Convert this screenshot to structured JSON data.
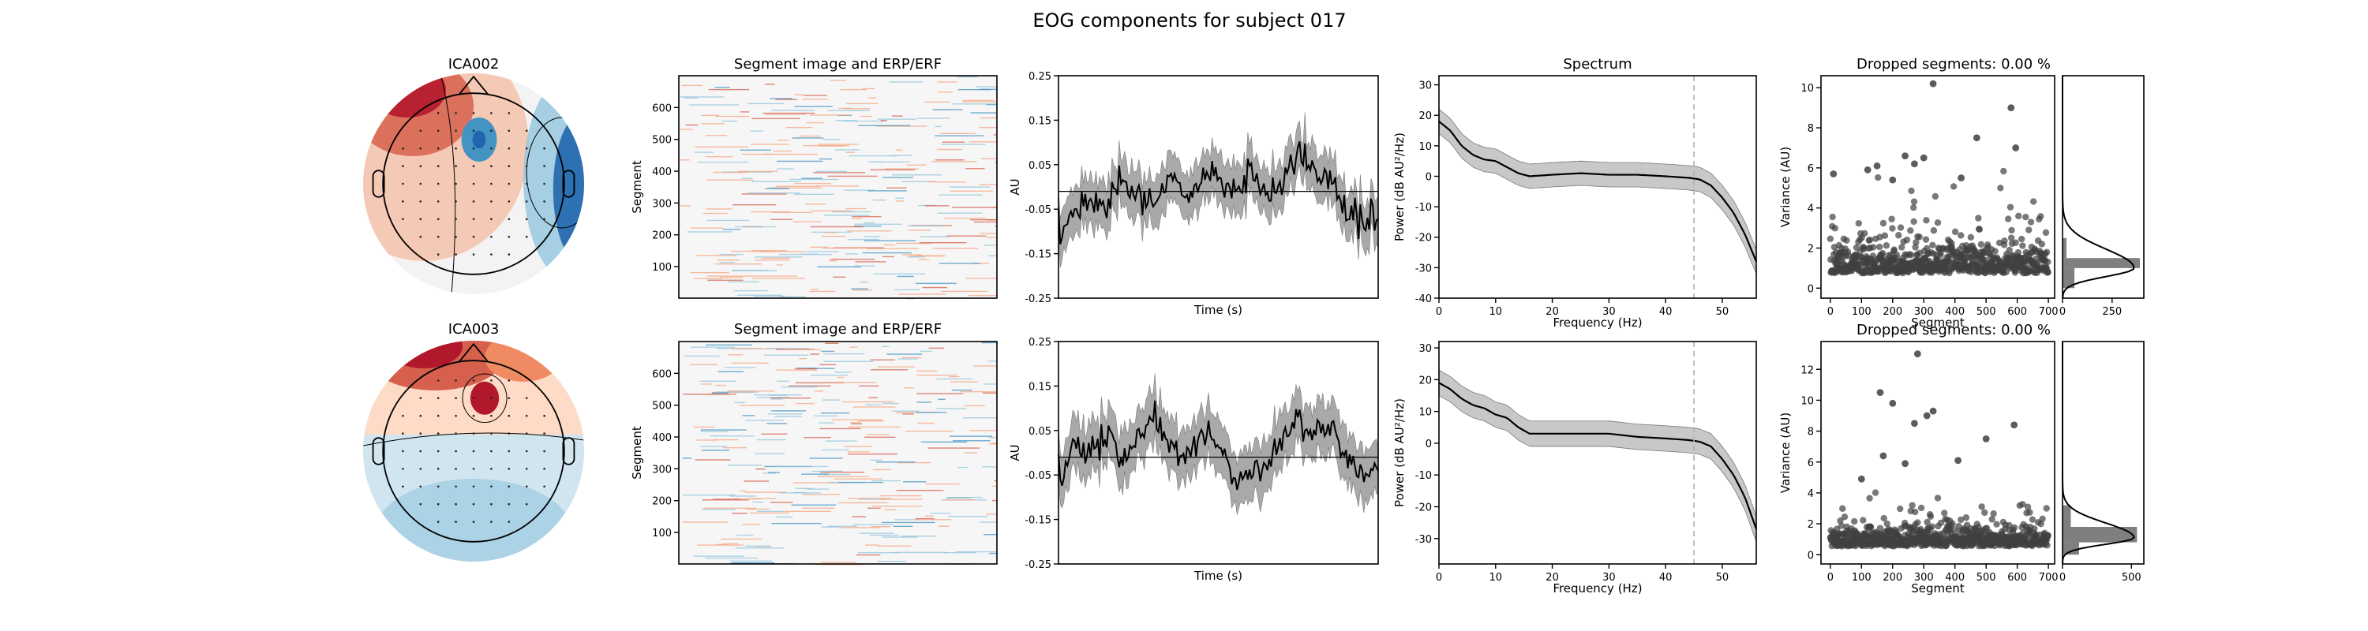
{
  "figure": {
    "suptitle": "EOG components for subject 017",
    "segment_image_title": "Segment image and ERP/ERF",
    "spectrum_title": "Spectrum",
    "dropped_title": "Dropped segments: 0.00 %"
  },
  "colors": {
    "topo_red": "#b2182b",
    "topo_blue": "#2166ac",
    "erp_line": "#000000",
    "erp_band": "#a9a9a9",
    "spectrum_band": "#c8c8c8",
    "dashed_line": "#b0b0b0",
    "scatter_point": "#404040",
    "hist_bar": "#7f7f7f"
  },
  "chart_data": [
    {
      "type": "image",
      "panel": "topomap",
      "component": "ICA002",
      "title": "ICA002",
      "colormap": "RdBu_r",
      "features": [
        "strong positive frontal-left lobe",
        "strong negative right-temporal lobe",
        "negative focal spot near right-center"
      ]
    },
    {
      "type": "heatmap",
      "panel": "segment_image",
      "component": "ICA002",
      "title": "Segment image and ERP/ERF",
      "ylabel": "Segment",
      "yticks": [
        100,
        200,
        300,
        400,
        500,
        600
      ],
      "ylim": [
        1,
        700
      ],
      "colormap": "RdBu_r"
    },
    {
      "type": "line",
      "panel": "erp",
      "component": "ICA002",
      "xlabel": "Time (s)",
      "ylabel": "AU",
      "yticks": [
        -0.25,
        -0.15,
        -0.05,
        0.05,
        0.15,
        0.25
      ],
      "ylim": [
        -0.25,
        0.25
      ],
      "x": [
        0.0,
        0.05,
        0.1,
        0.15,
        0.2,
        0.25,
        0.3,
        0.35,
        0.4,
        0.45,
        0.5,
        0.55,
        0.6,
        0.65,
        0.7,
        0.75,
        0.8,
        0.85,
        0.9,
        0.95,
        1.0
      ],
      "series": [
        {
          "values": [
            -0.11,
            -0.06,
            -0.04,
            -0.05,
            0.01,
            -0.02,
            -0.03,
            0.02,
            -0.03,
            0.03,
            0.02,
            -0.01,
            0.04,
            -0.02,
            0.01,
            0.09,
            0.03,
            0.01,
            -0.05,
            -0.07,
            -0.08
          ]
        },
        {
          "values": [
            -0.01,
            -0.01,
            -0.01,
            -0.01,
            -0.01,
            -0.01,
            -0.01,
            -0.01,
            -0.01,
            -0.01,
            -0.01,
            -0.01,
            -0.01,
            -0.01,
            -0.01,
            -0.01,
            -0.01,
            -0.01,
            -0.01,
            -0.01,
            -0.01
          ]
        }
      ],
      "band_halfwidth": 0.045
    },
    {
      "type": "line",
      "panel": "spectrum",
      "component": "ICA002",
      "title": "Spectrum",
      "xlabel": "Frequency (Hz)",
      "ylabel": "Power (dB AU²/Hz)",
      "xticks": [
        0,
        10,
        20,
        30,
        40,
        50
      ],
      "yticks": [
        -40,
        -30,
        -20,
        -10,
        0,
        10,
        20,
        30
      ],
      "xlim": [
        0,
        56
      ],
      "ylim": [
        -40,
        33
      ],
      "x": [
        0,
        2,
        4,
        6,
        8,
        10,
        12,
        14,
        16,
        20,
        25,
        30,
        35,
        40,
        44,
        46,
        48,
        50,
        52,
        54,
        56
      ],
      "values": [
        18,
        15,
        10,
        7,
        5.5,
        5,
        3,
        1,
        0,
        0.5,
        1,
        0.5,
        0.5,
        0,
        -0.5,
        -1,
        -3,
        -7,
        -12,
        -19,
        -28
      ],
      "band_halfwidth": 4,
      "vline": 45
    },
    {
      "type": "scatter",
      "panel": "variance",
      "component": "ICA002",
      "title": "Dropped segments: 0.00 %",
      "xlabel": "Segment",
      "ylabel": "Variance (AU)",
      "xticks": [
        0,
        100,
        200,
        300,
        400,
        500,
        600,
        700
      ],
      "yticks": [
        0,
        2,
        4,
        6,
        8,
        10
      ],
      "xlim": [
        -30,
        720
      ],
      "ylim": [
        -0.5,
        10.6
      ],
      "highlighted": [
        [
          330,
          10.2
        ],
        [
          580,
          9.0
        ],
        [
          595,
          7.0
        ],
        [
          470,
          7.5
        ],
        [
          240,
          6.6
        ],
        [
          300,
          6.5
        ],
        [
          10,
          5.7
        ],
        [
          120,
          5.9
        ],
        [
          150,
          6.1
        ],
        [
          270,
          6.2
        ],
        [
          420,
          5.5
        ],
        [
          200,
          5.4
        ]
      ],
      "n_segments": 700,
      "distribution": {
        "mean": 1.2,
        "spread": 1.2
      }
    },
    {
      "type": "bar",
      "panel": "variance_histogram",
      "component": "ICA002",
      "xticks": [
        0,
        250
      ],
      "xlim": [
        0,
        410
      ],
      "ylim": [
        -0.5,
        10.6
      ],
      "bins": [
        [
          0,
          1,
          60
        ],
        [
          1,
          1.5,
          390
        ],
        [
          1.5,
          2.5,
          20
        ]
      ],
      "kde_peak": 1.0
    },
    {
      "type": "image",
      "panel": "topomap",
      "component": "ICA003",
      "title": "ICA003",
      "colormap": "RdBu_r",
      "features": [
        "strong positive frontal band",
        "positive focal spot near right-center",
        "negative posterior half"
      ]
    },
    {
      "type": "heatmap",
      "panel": "segment_image",
      "component": "ICA003",
      "title": "Segment image and ERP/ERF",
      "ylabel": "Segment",
      "yticks": [
        100,
        200,
        300,
        400,
        500,
        600
      ],
      "ylim": [
        1,
        700
      ],
      "colormap": "RdBu_r"
    },
    {
      "type": "line",
      "panel": "erp",
      "component": "ICA003",
      "xlabel": "Time (s)",
      "ylabel": "AU",
      "yticks": [
        -0.25,
        -0.15,
        -0.05,
        0.05,
        0.15,
        0.25
      ],
      "ylim": [
        -0.25,
        0.25
      ],
      "x": [
        0.0,
        0.05,
        0.1,
        0.15,
        0.2,
        0.25,
        0.3,
        0.35,
        0.4,
        0.45,
        0.5,
        0.55,
        0.6,
        0.65,
        0.7,
        0.75,
        0.8,
        0.85,
        0.9,
        0.95,
        1.0
      ],
      "series": [
        {
          "values": [
            -0.06,
            0.02,
            0.0,
            0.05,
            -0.03,
            0.04,
            0.09,
            0.02,
            -0.02,
            0.05,
            0.01,
            -0.06,
            -0.03,
            -0.05,
            0.03,
            0.07,
            0.04,
            0.06,
            -0.01,
            -0.04,
            -0.04
          ]
        },
        {
          "values": [
            -0.01,
            -0.01,
            -0.01,
            -0.01,
            -0.01,
            -0.01,
            -0.01,
            -0.01,
            -0.01,
            -0.01,
            -0.01,
            -0.01,
            -0.01,
            -0.01,
            -0.01,
            -0.01,
            -0.01,
            -0.01,
            -0.01,
            -0.01,
            -0.01
          ]
        }
      ],
      "band_halfwidth": 0.05
    },
    {
      "type": "line",
      "panel": "spectrum",
      "component": "ICA003",
      "xlabel": "Frequency (Hz)",
      "ylabel": "Power (dB AU²/Hz)",
      "xticks": [
        0,
        10,
        20,
        30,
        40,
        50
      ],
      "yticks": [
        -30,
        -20,
        -10,
        0,
        10,
        20,
        30
      ],
      "xlim": [
        0,
        56
      ],
      "ylim": [
        -38,
        32
      ],
      "x": [
        0,
        2,
        4,
        6,
        8,
        10,
        12,
        14,
        16,
        20,
        25,
        30,
        35,
        40,
        44,
        46,
        48,
        50,
        52,
        54,
        56
      ],
      "values": [
        19,
        17,
        14,
        12,
        11,
        9,
        8,
        5,
        3,
        3,
        3,
        3,
        2,
        1.5,
        1,
        0.5,
        -1,
        -5,
        -10,
        -17,
        -27
      ],
      "band_halfwidth": 4,
      "vline": 45
    },
    {
      "type": "scatter",
      "panel": "variance",
      "component": "ICA003",
      "title": "Dropped segments: 0.00 %",
      "xlabel": "Segment",
      "ylabel": "Variance (AU)",
      "xticks": [
        0,
        100,
        200,
        300,
        400,
        500,
        600,
        700
      ],
      "yticks": [
        0,
        2,
        4,
        6,
        8,
        10,
        12
      ],
      "xlim": [
        -30,
        720
      ],
      "ylim": [
        -0.6,
        13.8
      ],
      "highlighted": [
        [
          280,
          13.0
        ],
        [
          160,
          10.5
        ],
        [
          200,
          9.8
        ],
        [
          330,
          9.3
        ],
        [
          310,
          9.0
        ],
        [
          270,
          8.5
        ],
        [
          590,
          8.4
        ],
        [
          500,
          7.5
        ],
        [
          170,
          6.4
        ],
        [
          410,
          6.1
        ],
        [
          240,
          5.9
        ],
        [
          100,
          4.9
        ]
      ],
      "n_segments": 700,
      "distribution": {
        "mean": 1.0,
        "spread": 1.1
      }
    },
    {
      "type": "bar",
      "panel": "variance_histogram",
      "component": "ICA003",
      "xticks": [
        0,
        500
      ],
      "xlim": [
        0,
        590
      ],
      "ylim": [
        -0.6,
        13.8
      ],
      "bins": [
        [
          0,
          0.8,
          120
        ],
        [
          0.8,
          1.8,
          540
        ],
        [
          1.8,
          3.2,
          60
        ]
      ],
      "kde_peak": 1.1
    }
  ]
}
